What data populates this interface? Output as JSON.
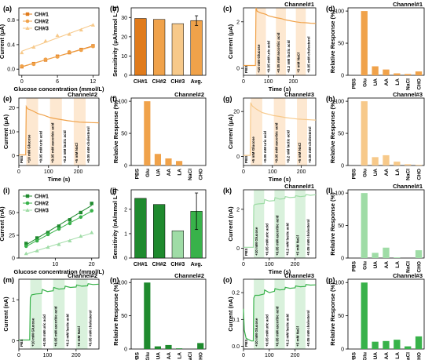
{
  "colors": {
    "orange_dark": "#e07b1c",
    "orange_mid": "#f0a24a",
    "orange_light": "#f7c98a",
    "orange_band": "#fde8d1",
    "green_dark": "#1f8a2e",
    "green_mid": "#38b24a",
    "green_light": "#9fdca6",
    "green_band": "#d9f1dc"
  },
  "chart_data": [
    {
      "panel": "(a)",
      "type": "scatter",
      "xlabel": "Glucose concentration (mmol/L)",
      "ylabel": "Current (μA)",
      "xlim": [
        -0.5,
        13
      ],
      "ylim": [
        -0.1,
        1.0
      ],
      "xticks": [
        "0",
        "6",
        "12"
      ],
      "yticks": [
        "0.0",
        "0.4",
        "0.8"
      ],
      "legend_position": "top-left",
      "series": [
        {
          "name": "CH#1",
          "marker": "square",
          "x": [
            0,
            2,
            4,
            6,
            8,
            10,
            12
          ],
          "y": [
            0.04,
            0.09,
            0.15,
            0.21,
            0.27,
            0.32,
            0.38
          ]
        },
        {
          "name": "CH#2",
          "marker": "circle",
          "x": [
            0,
            2,
            4,
            6,
            8,
            10,
            12
          ],
          "y": [
            0.05,
            0.08,
            0.16,
            0.2,
            0.28,
            0.31,
            0.37
          ]
        },
        {
          "name": "CH#3",
          "marker": "triangle",
          "x": [
            0,
            2,
            4,
            6,
            8,
            10,
            12
          ],
          "y": [
            0.27,
            0.36,
            0.46,
            0.55,
            0.57,
            0.64,
            0.72
          ]
        }
      ]
    },
    {
      "panel": "(b)",
      "type": "bar",
      "ylabel": "Sensitivity (μA/mmol L⁻¹)",
      "ylim": [
        0,
        35
      ],
      "yticks": [
        "0",
        "10",
        "20",
        "30"
      ],
      "categories": [
        "CH#1",
        "CH#2",
        "CH#3",
        "Avg."
      ],
      "values": [
        29.5,
        29.0,
        26.8,
        28.4
      ],
      "error": [
        0,
        0,
        0,
        2.5
      ]
    },
    {
      "panel": "(c)",
      "type": "line",
      "title": "Channel#1",
      "xlabel": "Time (s)",
      "ylabel": "Current (μA)",
      "xlim": [
        0,
        290
      ],
      "ylim": [
        -0.3,
        2.6
      ],
      "xticks": [
        "0",
        "100",
        "200"
      ],
      "yticks": [
        "0",
        "2"
      ],
      "annotations": [
        "PBS",
        "+10 mM Glucose",
        "+0.05 mM uric acid",
        "+0.05 mM ascorbic acid",
        "+0.2 mM lactic acid",
        "+5 mM NaCl",
        "+0.05 mM cholesterol"
      ],
      "events": [
        50,
        90,
        130,
        170,
        210,
        250
      ],
      "x": [
        0,
        48,
        50,
        55,
        70,
        90,
        100,
        130,
        150,
        170,
        190,
        210,
        230,
        250,
        270,
        290
      ],
      "y": [
        0.12,
        0.12,
        2.6,
        2.45,
        2.38,
        2.32,
        2.26,
        2.18,
        2.14,
        2.08,
        2.04,
        2.0,
        1.97,
        1.96,
        1.94,
        1.93
      ]
    },
    {
      "panel": "(d)",
      "type": "bar",
      "title": "Channel#1",
      "ylabel": "Relative Response (%)",
      "ylim": [
        0,
        105
      ],
      "yticks": [
        "0",
        "50",
        "100"
      ],
      "categories": [
        "PBS",
        "Glu",
        "UA",
        "AA",
        "LA",
        "NaCl",
        "CHO"
      ],
      "values": [
        0,
        100,
        14,
        9,
        3,
        2,
        6
      ]
    },
    {
      "panel": "(e)",
      "type": "line",
      "title": "Channel#2",
      "xlabel": "Time (s)",
      "ylabel": "Current (μA)",
      "xlim": [
        0,
        270
      ],
      "ylim": [
        -4,
        24
      ],
      "xticks": [
        "0",
        "100",
        "200"
      ],
      "yticks": [
        "0",
        "10",
        "20"
      ],
      "annotations": [
        "PBS",
        "+10 mM Glucose",
        "+0.05 mM uric acid",
        "+0.05 mM ascorbic acid",
        "+0.2 mM lactic acid",
        "+5 mM NaCl",
        "+0.05 mM cholesterol"
      ],
      "events": [
        25,
        65,
        105,
        145,
        185,
        225
      ],
      "x": [
        0,
        23,
        25,
        30,
        45,
        65,
        85,
        105,
        125,
        145,
        165,
        185,
        205,
        225,
        245,
        270
      ],
      "y": [
        0.4,
        0.4,
        20.5,
        19.5,
        18.8,
        17.5,
        16.8,
        15.9,
        15.4,
        15.0,
        14.6,
        14.3,
        14.0,
        13.9,
        13.8,
        13.7
      ]
    },
    {
      "panel": "(f)",
      "type": "bar",
      "title": "Channel#2",
      "ylabel": "Relative Response (%)",
      "ylim": [
        0,
        105
      ],
      "yticks": [
        "0",
        "50",
        "100"
      ],
      "categories": [
        "PBS",
        "Glu",
        "UA",
        "AA",
        "LA",
        "NaCl",
        "CHO"
      ],
      "values": [
        0,
        100,
        18,
        11,
        7,
        0,
        0
      ]
    },
    {
      "panel": "(g)",
      "type": "line",
      "title": "Channel#3",
      "xlabel": "Time (s)",
      "ylabel": "Current (μA)",
      "xlim": [
        0,
        250
      ],
      "ylim": [
        -4,
        26
      ],
      "xticks": [
        "0",
        "100",
        "200"
      ],
      "yticks": [
        "0",
        "20"
      ],
      "annotations": [
        "PBS",
        "+5 mM Glucose",
        "+0.05 mM uric acid",
        "+0.05 mM ascorbic acid",
        "+0.2 mM lactic acid",
        "+5 mM NaCl",
        "+0.05 mM cholesterol"
      ],
      "events": [
        25,
        65,
        105,
        145,
        185,
        220
      ],
      "x": [
        0,
        23,
        25,
        30,
        45,
        65,
        85,
        105,
        125,
        145,
        165,
        185,
        205,
        220,
        235,
        250
      ],
      "y": [
        0.5,
        0.5,
        24.0,
        22.5,
        21.0,
        19.5,
        18.8,
        18.2,
        17.8,
        17.3,
        17.0,
        16.7,
        16.5,
        16.4,
        16.3,
        16.2
      ]
    },
    {
      "panel": "(h)",
      "type": "bar",
      "title": "Channel#3",
      "ylabel": "Relative Response (%)",
      "ylim": [
        0,
        105
      ],
      "yticks": [
        "0",
        "50",
        "100"
      ],
      "categories": [
        "PBS",
        "Glu",
        "UA",
        "AA",
        "LA",
        "NaCl",
        "CHO"
      ],
      "values": [
        0,
        100,
        13,
        16,
        6,
        2,
        1
      ]
    },
    {
      "panel": "(i)",
      "type": "scatter",
      "xlabel": "Glucose concentration (mmol/L)",
      "ylabel": "Current (nA)",
      "xlim": [
        0,
        22
      ],
      "ylim": [
        0,
        75
      ],
      "xticks": [
        "10",
        "20"
      ],
      "yticks": [
        "0",
        "25",
        "50"
      ],
      "legend_position": "top-left",
      "series": [
        {
          "name": "CH#1",
          "marker": "square",
          "x": [
            2,
            5,
            8,
            11,
            14,
            17,
            20
          ],
          "y": [
            16,
            22,
            28,
            35,
            42,
            50,
            60
          ]
        },
        {
          "name": "CH#2",
          "marker": "circle",
          "x": [
            2,
            5,
            8,
            11,
            14,
            17,
            20
          ],
          "y": [
            13,
            19,
            26,
            32,
            38,
            45,
            52
          ]
        },
        {
          "name": "CH#3",
          "marker": "triangle",
          "x": [
            2,
            5,
            8,
            11,
            14,
            17,
            20
          ],
          "y": [
            5,
            8,
            12,
            15,
            19,
            24,
            28
          ]
        }
      ]
    },
    {
      "panel": "(j)",
      "type": "bar",
      "ylabel": "Sensitivity (nA/mmol L⁻¹)",
      "ylim": [
        0,
        2.8
      ],
      "yticks": [
        "0",
        "1",
        "2"
      ],
      "categories": [
        "CH#1",
        "CH#2",
        "CH#3",
        "Avg."
      ],
      "values": [
        2.45,
        2.2,
        1.12,
        1.92
      ],
      "error": [
        0,
        0,
        0,
        0.75
      ]
    },
    {
      "panel": "(k)",
      "type": "line",
      "title": "Channel#1",
      "xlabel": "Time (s)",
      "ylabel": "Current (nA)",
      "xlim": [
        0,
        280
      ],
      "ylim": [
        -0.5,
        3.0
      ],
      "xticks": [
        "0",
        "100",
        "200"
      ],
      "yticks": [
        "0",
        "2"
      ],
      "annotations": [
        "PBS",
        "+10 mM Glucose",
        "+0.05 mM uric acid",
        "+0.05 mM ascorbic acid",
        "+0.2 mM lactic acid",
        "+5 mM NaCl",
        "+0.05 mM cholesterol"
      ],
      "events": [
        40,
        80,
        120,
        160,
        200,
        240
      ],
      "x": [
        0,
        38,
        40,
        45,
        60,
        80,
        82,
        100,
        120,
        122,
        140,
        160,
        162,
        180,
        200,
        202,
        220,
        240,
        242,
        260,
        280
      ],
      "y": [
        0.05,
        0.05,
        2.2,
        2.25,
        2.28,
        2.3,
        2.5,
        2.42,
        2.45,
        2.6,
        2.52,
        2.55,
        2.65,
        2.6,
        2.62,
        2.7,
        2.65,
        2.68,
        2.76,
        2.72,
        2.75
      ]
    },
    {
      "panel": "(l)",
      "type": "bar",
      "title": "Channel#1",
      "ylabel": "Relative Response (%)",
      "ylim": [
        0,
        105
      ],
      "yticks": [
        "0",
        "50",
        "100"
      ],
      "categories": [
        "PBS",
        "Glu",
        "UA",
        "AA",
        "LA",
        "NaCl",
        "CHO"
      ],
      "values": [
        0,
        100,
        8,
        16,
        1,
        0,
        12
      ]
    },
    {
      "panel": "(m)",
      "type": "line",
      "title": "Channel#2",
      "xlabel": "Time (s)",
      "ylabel": "Current (nA)",
      "xlim": [
        0,
        280
      ],
      "ylim": [
        -0.2,
        1.5
      ],
      "xticks": [
        "0",
        "100",
        "200"
      ],
      "yticks": [
        "0",
        "1"
      ],
      "annotations": [
        "PBS",
        "+10 mM Glucose",
        "+0.05 mM uric acid",
        "+0.05 mM ascorbic acid",
        "+0.2 mM lactic acid",
        "+5 mM NaCl",
        "+0.05 mM cholesterol"
      ],
      "events": [
        40,
        80,
        120,
        160,
        200,
        240
      ],
      "x": [
        0,
        38,
        40,
        45,
        60,
        80,
        82,
        100,
        120,
        122,
        140,
        160,
        162,
        180,
        200,
        202,
        220,
        240,
        242,
        260,
        280
      ],
      "y": [
        0.02,
        0.02,
        1.05,
        1.12,
        1.14,
        1.15,
        1.25,
        1.2,
        1.22,
        1.3,
        1.26,
        1.27,
        1.33,
        1.3,
        1.31,
        1.36,
        1.33,
        1.34,
        1.39,
        1.37,
        1.38
      ]
    },
    {
      "panel": "(n)",
      "type": "bar",
      "title": "Channel#2",
      "ylabel": "Relative Response (%)",
      "ylim": [
        0,
        105
      ],
      "yticks": [
        "0",
        "50",
        "100"
      ],
      "categories": [
        "PBS",
        "Glu",
        "UA",
        "AA",
        "LA",
        "NaCl",
        "CHO"
      ],
      "values": [
        0,
        100,
        4,
        6,
        1,
        0,
        9
      ]
    },
    {
      "panel": "(o)",
      "type": "line",
      "title": "Channel#3",
      "xlabel": "Time (s)",
      "ylabel": "Current (nA)",
      "xlim": [
        0,
        280
      ],
      "ylim": [
        -0.01,
        0.25
      ],
      "xticks": [
        "0",
        "100",
        "200"
      ],
      "yticks": [
        "0.0",
        "0.1",
        "0.2"
      ],
      "annotations": [
        "PBS",
        "+10 mM Glucose",
        "+0.05 mM uric acid",
        "+0.05 mM ascorbic acid",
        "+0.2 mM lactic acid",
        "+5 mM NaCl",
        "+0.05 mM cholesterol"
      ],
      "events": [
        40,
        80,
        120,
        160,
        200,
        240
      ],
      "x": [
        0,
        3,
        10,
        20,
        30,
        38,
        40,
        45,
        60,
        80,
        82,
        100,
        120,
        122,
        140,
        160,
        162,
        180,
        200,
        202,
        220,
        240,
        242,
        260,
        280
      ],
      "y": [
        0.14,
        0.06,
        0.03,
        0.025,
        0.02,
        0.02,
        0.18,
        0.19,
        0.19,
        0.195,
        0.21,
        0.2,
        0.205,
        0.215,
        0.21,
        0.212,
        0.22,
        0.216,
        0.218,
        0.225,
        0.222,
        0.223,
        0.23,
        0.228,
        0.229
      ]
    },
    {
      "panel": "(p)",
      "type": "bar",
      "title": "Channel#3",
      "ylabel": "Relative Response (%)",
      "ylim": [
        0,
        105
      ],
      "yticks": [
        "0",
        "50",
        "100"
      ],
      "categories": [
        "PBS",
        "Glu",
        "UA",
        "AA",
        "LA",
        "NaCl",
        "CHO"
      ],
      "values": [
        0,
        100,
        11,
        12,
        14,
        4,
        19
      ]
    }
  ]
}
